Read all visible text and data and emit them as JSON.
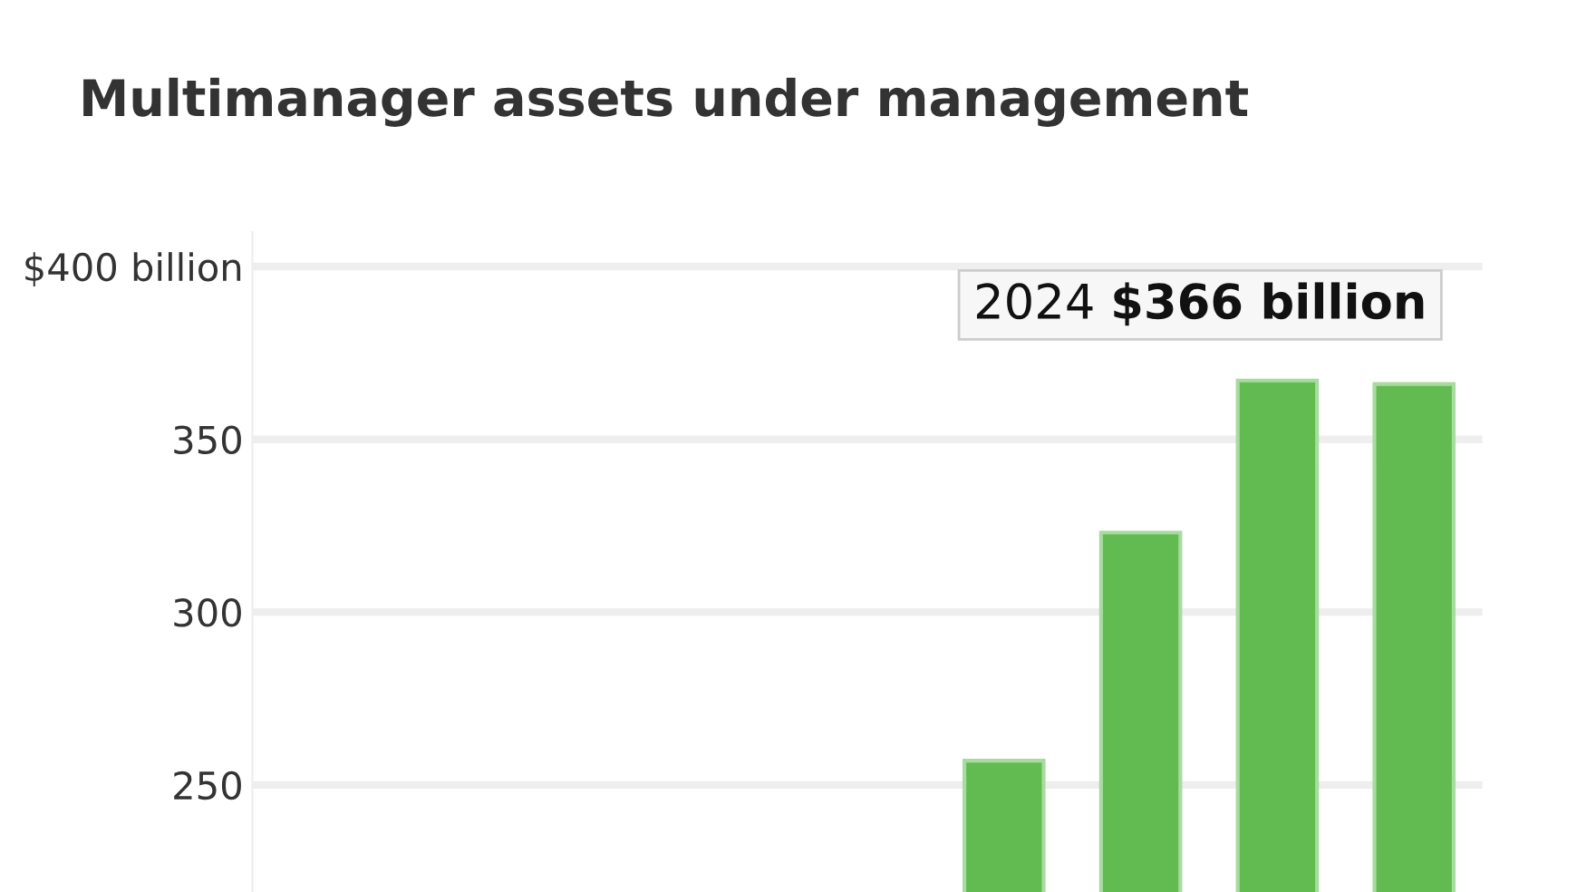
{
  "chart_data": {
    "type": "bar",
    "title": "Multimanager assets under management",
    "categories": [
      null,
      null,
      null,
      null,
      null,
      null,
      null,
      null,
      null
    ],
    "values": [
      null,
      null,
      null,
      null,
      null,
      257,
      323,
      367,
      366
    ],
    "color": "#62bb50",
    "ylim": [
      219,
      410
    ],
    "yticks": [
      250,
      300,
      350,
      {
        "value": 400,
        "label": "$400 billion"
      }
    ],
    "grid": "y",
    "annotations": [
      "2024 $366 billion"
    ]
  }
}
